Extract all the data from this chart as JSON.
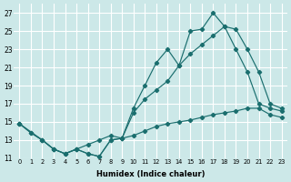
{
  "xlabel": "Humidex (Indice chaleur)",
  "background_color": "#cce8e8",
  "grid_color": "#ffffff",
  "line_color": "#1a6e6e",
  "xlim": [
    -0.5,
    23.5
  ],
  "ylim": [
    11,
    28
  ],
  "yticks": [
    11,
    13,
    15,
    17,
    19,
    21,
    23,
    25,
    27
  ],
  "xticks": [
    0,
    1,
    2,
    3,
    4,
    5,
    6,
    7,
    8,
    9,
    10,
    11,
    12,
    13,
    14,
    15,
    16,
    17,
    18,
    19,
    20,
    21,
    22,
    23
  ],
  "line_bottom_x": [
    0,
    1,
    2,
    3,
    4,
    5,
    6,
    7,
    8,
    9,
    10,
    11,
    12,
    13,
    14,
    15,
    16,
    17,
    18,
    19,
    20,
    21,
    22,
    23
  ],
  "line_bottom_y": [
    14.8,
    13.8,
    13.0,
    12.0,
    11.5,
    12.0,
    11.5,
    11.2,
    13.0,
    13.2,
    13.5,
    14.0,
    14.5,
    14.8,
    15.0,
    15.2,
    15.5,
    15.8,
    16.0,
    16.2,
    16.5,
    16.5,
    15.8,
    15.5
  ],
  "line_mid_x": [
    0,
    2,
    3,
    4,
    5,
    6,
    7,
    8,
    9,
    10,
    11,
    12,
    13,
    14,
    15,
    16,
    17,
    18,
    19,
    20,
    21,
    22,
    23
  ],
  "line_mid_y": [
    14.8,
    13.0,
    12.0,
    11.5,
    12.0,
    12.5,
    13.0,
    13.5,
    13.2,
    16.0,
    17.5,
    18.5,
    19.5,
    21.2,
    22.5,
    23.5,
    24.5,
    25.5,
    25.2,
    23.0,
    20.5,
    17.0,
    16.5
  ],
  "line_top_x": [
    0,
    1,
    2,
    3,
    4,
    5,
    6,
    7,
    8,
    9,
    10,
    11,
    12,
    13,
    14,
    15,
    16,
    17,
    18,
    19,
    20,
    21,
    22,
    23
  ],
  "line_top_y": [
    14.8,
    13.8,
    13.0,
    12.0,
    11.5,
    12.0,
    11.5,
    11.2,
    13.0,
    13.2,
    16.5,
    19.0,
    21.5,
    23.0,
    21.2,
    25.0,
    25.2,
    27.0,
    25.5,
    23.0,
    20.5,
    17.0,
    16.5,
    16.2
  ]
}
